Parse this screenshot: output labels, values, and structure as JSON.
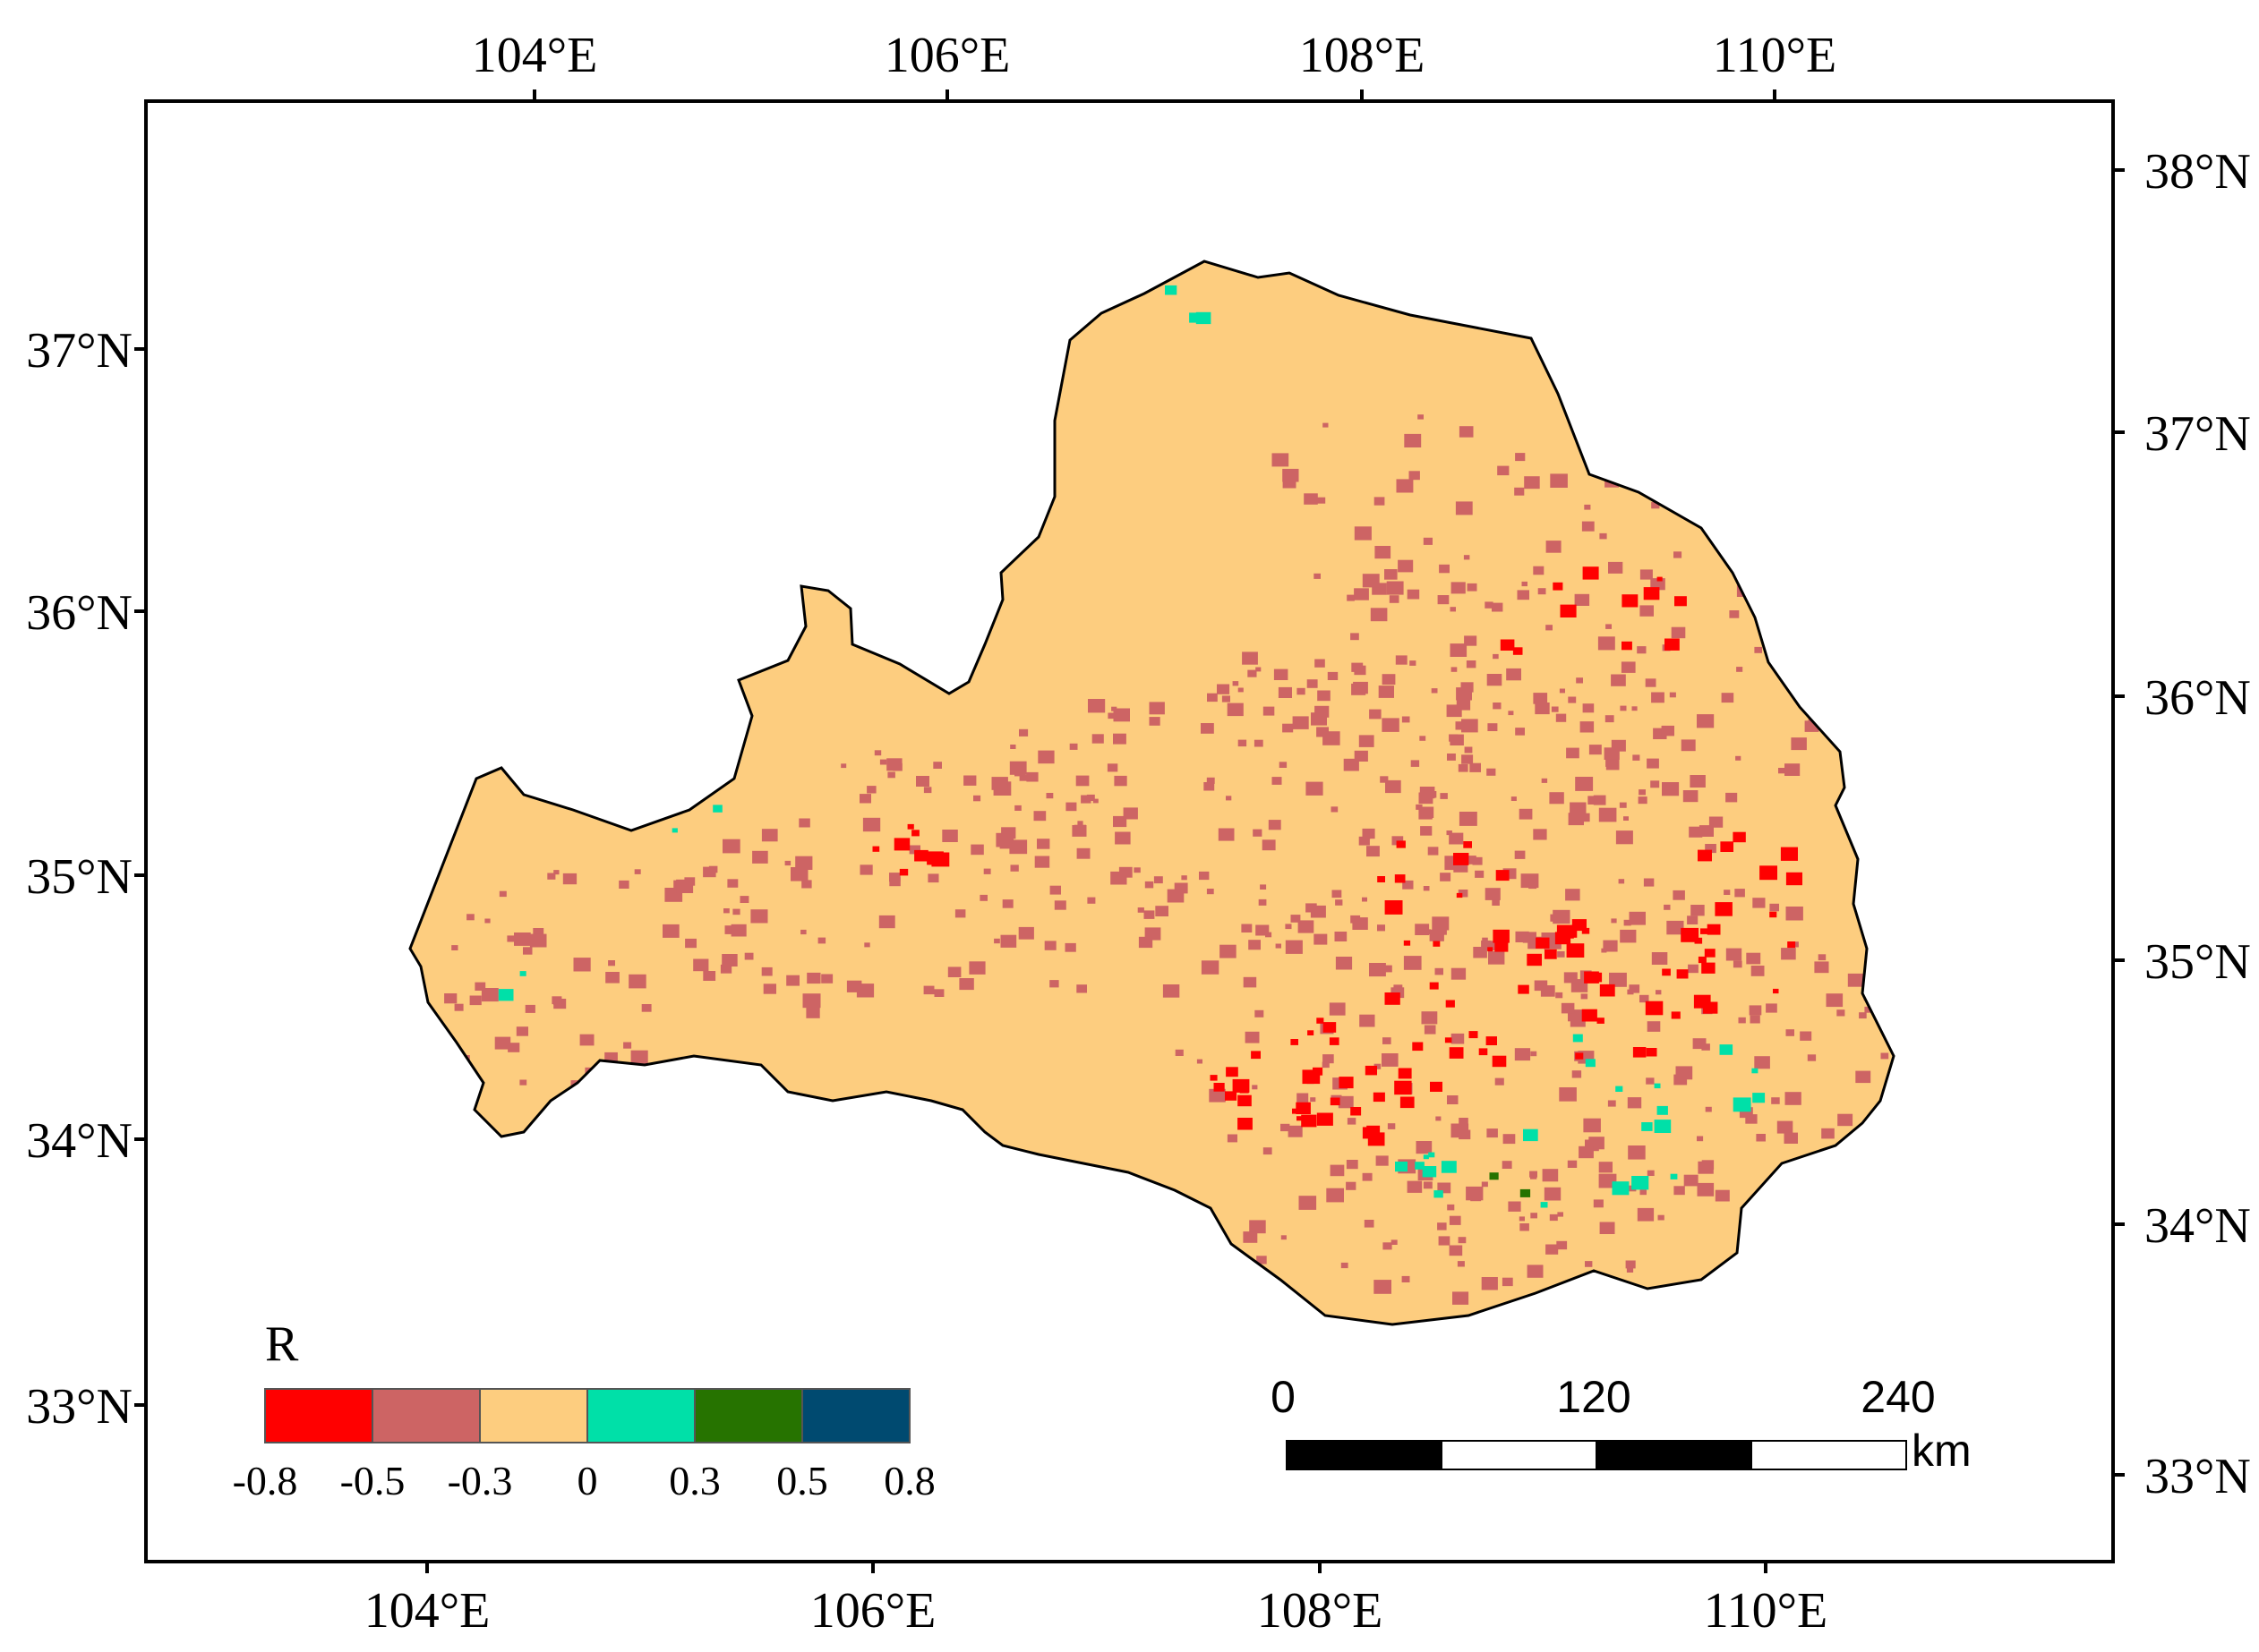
{
  "map": {
    "top_axis_labels": [
      "104°E",
      "106°E",
      "108°E",
      "110°E"
    ],
    "bottom_axis_labels": [
      "104°E",
      "106°E",
      "108°E",
      "110°E"
    ],
    "left_axis_labels": [
      "37°N",
      "36°N",
      "35°N",
      "34°N",
      "33°N"
    ],
    "right_axis_labels": [
      "38°N",
      "37°N",
      "36°N",
      "35°N",
      "34°N",
      "33°N"
    ],
    "legend": {
      "title": "R",
      "classes": [
        {
          "color": "#ff0000"
        },
        {
          "color": "#cd6464"
        },
        {
          "color": "#fdcd7f"
        },
        {
          "color": "#00e0a8"
        },
        {
          "color": "#267300"
        },
        {
          "color": "#004a70"
        }
      ],
      "breaks": [
        "-0.8",
        "-0.5",
        "-0.3",
        "0",
        "0.3",
        "0.5",
        "0.8"
      ]
    },
    "scale_bar": {
      "labels": [
        "0",
        "120",
        "240"
      ],
      "unit": "km"
    },
    "colors": {
      "outline": "#000000",
      "base_fill": "#fdcd7f"
    }
  }
}
